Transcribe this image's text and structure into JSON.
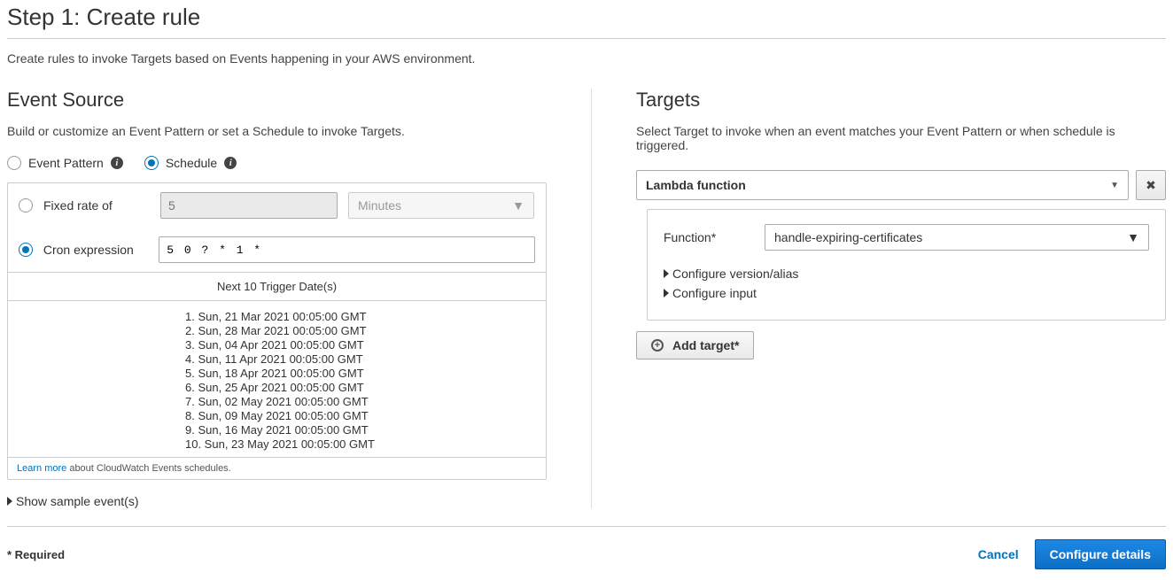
{
  "page": {
    "title": "Step 1: Create rule",
    "subtitle": "Create rules to invoke Targets based on Events happening in your AWS environment."
  },
  "eventSource": {
    "title": "Event Source",
    "desc": "Build or customize an Event Pattern or set a Schedule to invoke Targets.",
    "radios": {
      "eventPattern": "Event Pattern",
      "schedule": "Schedule"
    },
    "selectedTop": "schedule",
    "fixedRate": {
      "label": "Fixed rate of",
      "value": "5",
      "unit": "Minutes"
    },
    "cron": {
      "label": "Cron expression",
      "value": "5 0 ? * 1 *"
    },
    "selectedSchedule": "cron",
    "triggerHeader": "Next 10 Trigger Date(s)",
    "triggers": [
      "1. Sun, 21 Mar 2021 00:05:00 GMT",
      "2. Sun, 28 Mar 2021 00:05:00 GMT",
      "3. Sun, 04 Apr 2021 00:05:00 GMT",
      "4. Sun, 11 Apr 2021 00:05:00 GMT",
      "5. Sun, 18 Apr 2021 00:05:00 GMT",
      "6. Sun, 25 Apr 2021 00:05:00 GMT",
      "7. Sun, 02 May 2021 00:05:00 GMT",
      "8. Sun, 09 May 2021 00:05:00 GMT",
      "9. Sun, 16 May 2021 00:05:00 GMT",
      "10. Sun, 23 May 2021 00:05:00 GMT"
    ],
    "learnMore": {
      "link": "Learn more",
      "text": " about CloudWatch Events schedules."
    },
    "showSample": "Show sample event(s)"
  },
  "targets": {
    "title": "Targets",
    "desc": "Select Target to invoke when an event matches your Event Pattern or when schedule is triggered.",
    "typeSelected": "Lambda function",
    "functionLabel": "Function*",
    "functionSelected": "handle-expiring-certificates",
    "configureVersion": "Configure version/alias",
    "configureInput": "Configure input",
    "addTarget": "Add target*"
  },
  "footer": {
    "required": "* Required",
    "cancel": "Cancel",
    "primary": "Configure details"
  },
  "colors": {
    "accent": "#0073bb",
    "primaryButton": "#1e88e5",
    "border": "#cccccc"
  }
}
